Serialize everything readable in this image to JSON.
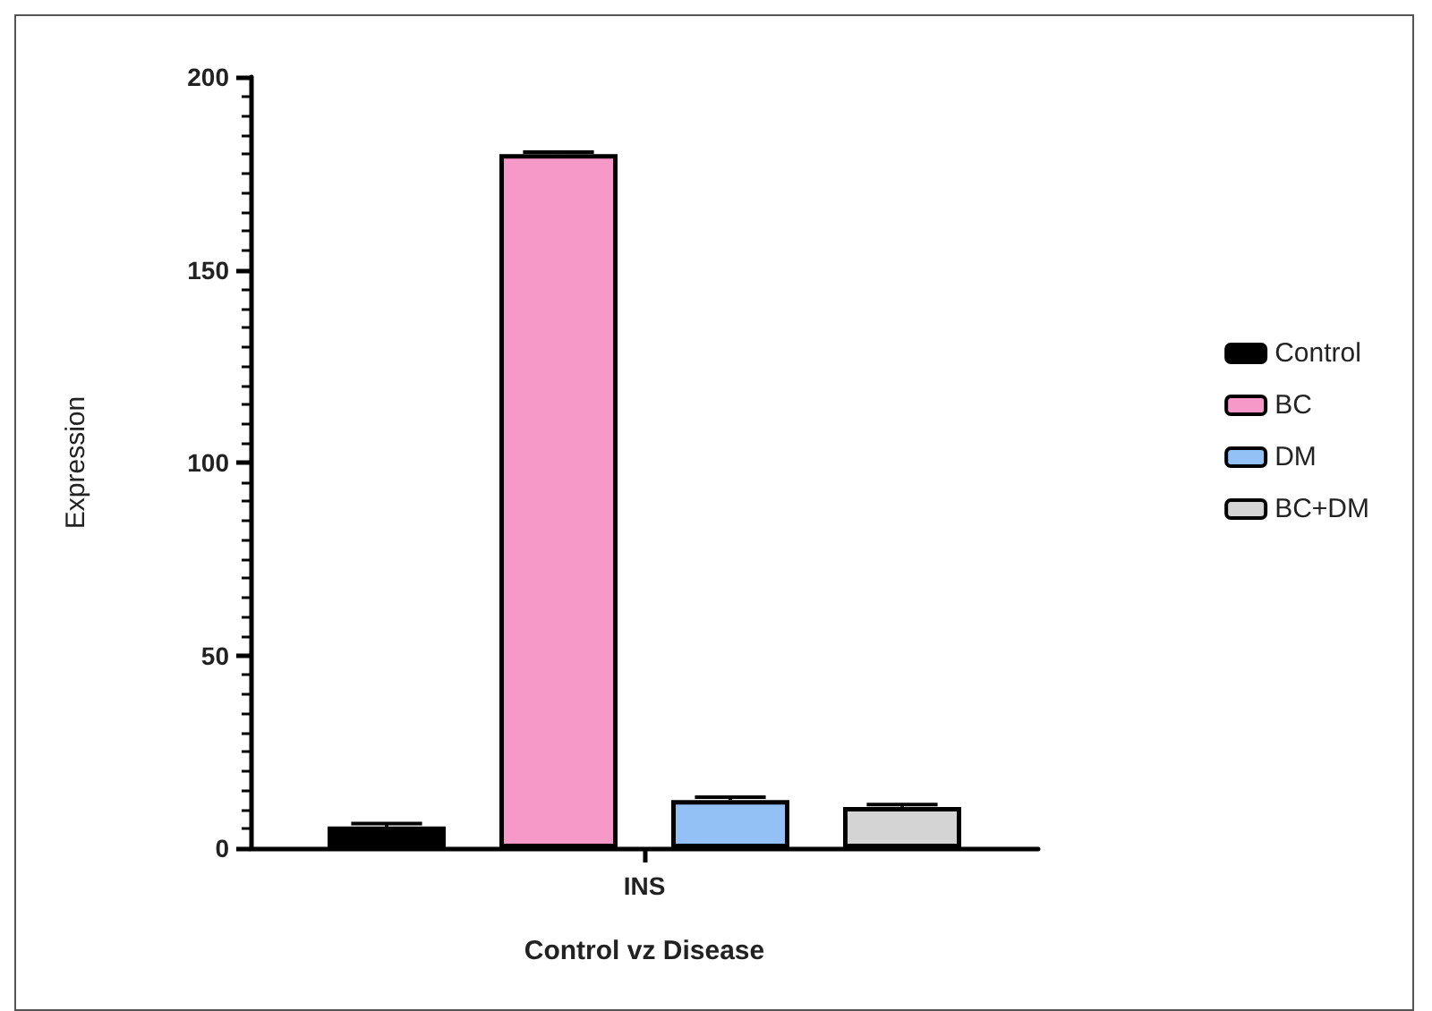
{
  "chart_data": {
    "type": "bar",
    "xlabel": "Control vz Disease",
    "ylabel": "Expression",
    "categories": [
      "INS"
    ],
    "series": [
      {
        "name": "Control",
        "color": "#000000",
        "values": [
          5.6
        ],
        "errors": [
          0.8
        ]
      },
      {
        "name": "BC",
        "color": "#f799c8",
        "values": [
          180
        ],
        "errors": [
          0.5
        ]
      },
      {
        "name": "DM",
        "color": "#93c0f5",
        "values": [
          12.5
        ],
        "errors": [
          0.7
        ]
      },
      {
        "name": "BC+DM",
        "color": "#d4d4d4",
        "values": [
          10.7
        ],
        "errors": [
          0.6
        ]
      }
    ],
    "ylim": [
      0,
      200
    ],
    "yticks": [
      0,
      50,
      100,
      150,
      200
    ],
    "grid": false,
    "legend": "right"
  }
}
